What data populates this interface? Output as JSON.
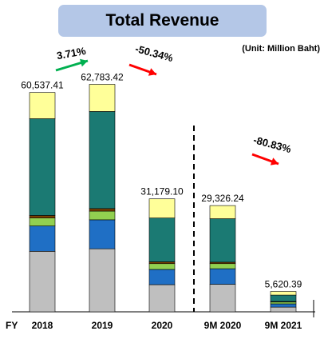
{
  "chart_data": {
    "type": "bar",
    "stacked": true,
    "title": "Total Revenue",
    "unit_label": "(Unit: Million Baht)",
    "axis_prefix": "FY",
    "categories": [
      "2018",
      "2019",
      "2020",
      "9M 2020",
      "9M 2021"
    ],
    "totals": [
      60537.41,
      62783.42,
      31179.1,
      29326.24,
      5620.39
    ],
    "total_labels": [
      "60,537.41",
      "62,783.42",
      "31,179.10",
      "29,326.24",
      "5,620.39"
    ],
    "series": [
      {
        "color": "#bfbfbf",
        "values": [
          16700,
          17400,
          7500,
          7600,
          1300
        ]
      },
      {
        "color": "#1f6fc5",
        "values": [
          7000,
          8000,
          4200,
          4300,
          900
        ]
      },
      {
        "color": "#92d050",
        "values": [
          2200,
          2400,
          1600,
          1400,
          500
        ]
      },
      {
        "color": "#7b3f00",
        "values": [
          700,
          700,
          500,
          400,
          150
        ]
      },
      {
        "color": "#1b7a73",
        "values": [
          26700,
          26800,
          12100,
          12000,
          1770
        ]
      },
      {
        "color": "#ffff99",
        "values": [
          7237.41,
          7483.42,
          5279.1,
          3626.24,
          1000.39
        ]
      }
    ],
    "ylim": [
      0,
      64000
    ],
    "changes": [
      {
        "label": "3.71%",
        "direction": "up",
        "color": "#00b050"
      },
      {
        "label": "-50.34%",
        "direction": "down",
        "color": "#ff0000"
      },
      {
        "label": "-80.83%",
        "direction": "down",
        "color": "#ff0000"
      }
    ],
    "divider_after_index": 2
  }
}
